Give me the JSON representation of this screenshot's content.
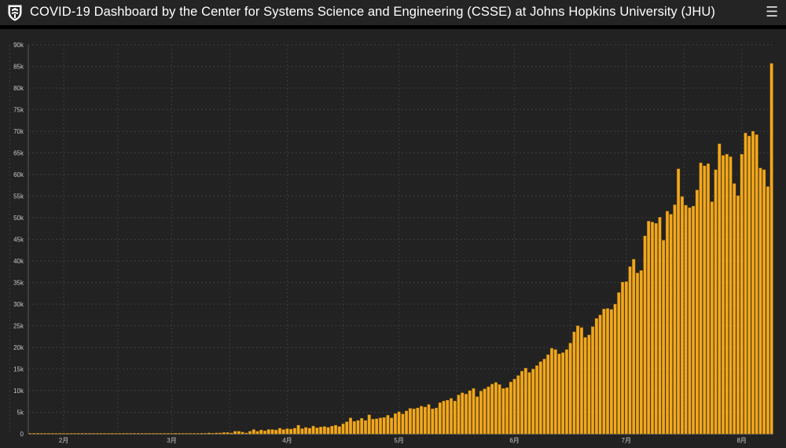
{
  "header": {
    "title": "COVID-19 Dashboard by the Center for Systems Science and Engineering (CSSE) at Johns Hopkins University (JHU)",
    "menu_icon": "hamburger-menu-icon",
    "logo_icon": "jhu-shield-logo-icon"
  },
  "colors": {
    "bar": "#f2a81d",
    "bar_stroke": "#b87a08",
    "grid": "#3c3c3c",
    "panel": "#222222",
    "tick_text": "#c8c8c8"
  },
  "chart_data": {
    "type": "bar",
    "title": "",
    "xlabel": "",
    "ylabel": "",
    "ylim": [
      0,
      90000
    ],
    "yticks": [
      0,
      5000,
      10000,
      15000,
      20000,
      25000,
      30000,
      35000,
      40000,
      45000,
      50000,
      55000,
      60000,
      65000,
      70000,
      75000,
      80000,
      85000,
      90000
    ],
    "ytick_labels": [
      "0",
      "5k",
      "10k",
      "15k",
      "20k",
      "25k",
      "30k",
      "35k",
      "40k",
      "45k",
      "50k",
      "55k",
      "60k",
      "65k",
      "70k",
      "75k",
      "80k",
      "85k",
      "90k"
    ],
    "xtick_labels": [
      "2月",
      "3月",
      "4月",
      "5月",
      "6月",
      "7月",
      "8月"
    ],
    "xtick_index": [
      9,
      38,
      69,
      99,
      130,
      160,
      191
    ],
    "grid": true,
    "values": [
      0,
      0,
      100,
      0,
      0,
      0,
      0,
      0,
      0,
      0,
      0,
      0,
      0,
      0,
      0,
      0,
      0,
      0,
      0,
      0,
      0,
      0,
      0,
      0,
      0,
      0,
      0,
      0,
      0,
      0,
      0,
      0,
      0,
      0,
      0,
      0,
      0,
      0,
      0,
      100,
      0,
      0,
      0,
      0,
      0,
      0,
      100,
      100,
      200,
      100,
      200,
      200,
      300,
      300,
      200,
      600,
      600,
      400,
      200,
      600,
      1000,
      600,
      900,
      700,
      1000,
      1000,
      900,
      1300,
      1000,
      1200,
      1100,
      1300,
      2000,
      1200,
      1500,
      1300,
      1800,
      1400,
      1600,
      1700,
      1500,
      1800,
      2000,
      1700,
      2300,
      2800,
      3700,
      2900,
      3100,
      3600,
      3100,
      4400,
      3400,
      3500,
      3700,
      3800,
      4300,
      3700,
      4700,
      5100,
      4600,
      5300,
      5900,
      5800,
      6000,
      6400,
      6200,
      6800,
      5800,
      6000,
      7200,
      7600,
      7800,
      8200,
      7600,
      9000,
      9500,
      9200,
      10000,
      10500,
      8600,
      9900,
      10400,
      10900,
      11500,
      11900,
      11400,
      10500,
      10700,
      12000,
      12700,
      13500,
      14500,
      15200,
      14200,
      15000,
      15800,
      16700,
      17300,
      18300,
      19800,
      19500,
      18500,
      18800,
      19500,
      21000,
      23600,
      25000,
      24600,
      22300,
      22900,
      24800,
      26700,
      27500,
      28900,
      29000,
      28800,
      30000,
      32700,
      35100,
      35200,
      38700,
      40400,
      37200,
      37800,
      45800,
      49200,
      49000,
      48700,
      50100,
      44800,
      51500,
      50800,
      53000,
      61300,
      54900,
      52900,
      52300,
      52700,
      56400,
      62700,
      62000,
      62500,
      53700,
      61100,
      67100,
      64400,
      64700,
      64100,
      57900,
      55100,
      64700,
      69600,
      68900,
      70000,
      69200,
      61500,
      61100,
      57200,
      85700
    ]
  }
}
